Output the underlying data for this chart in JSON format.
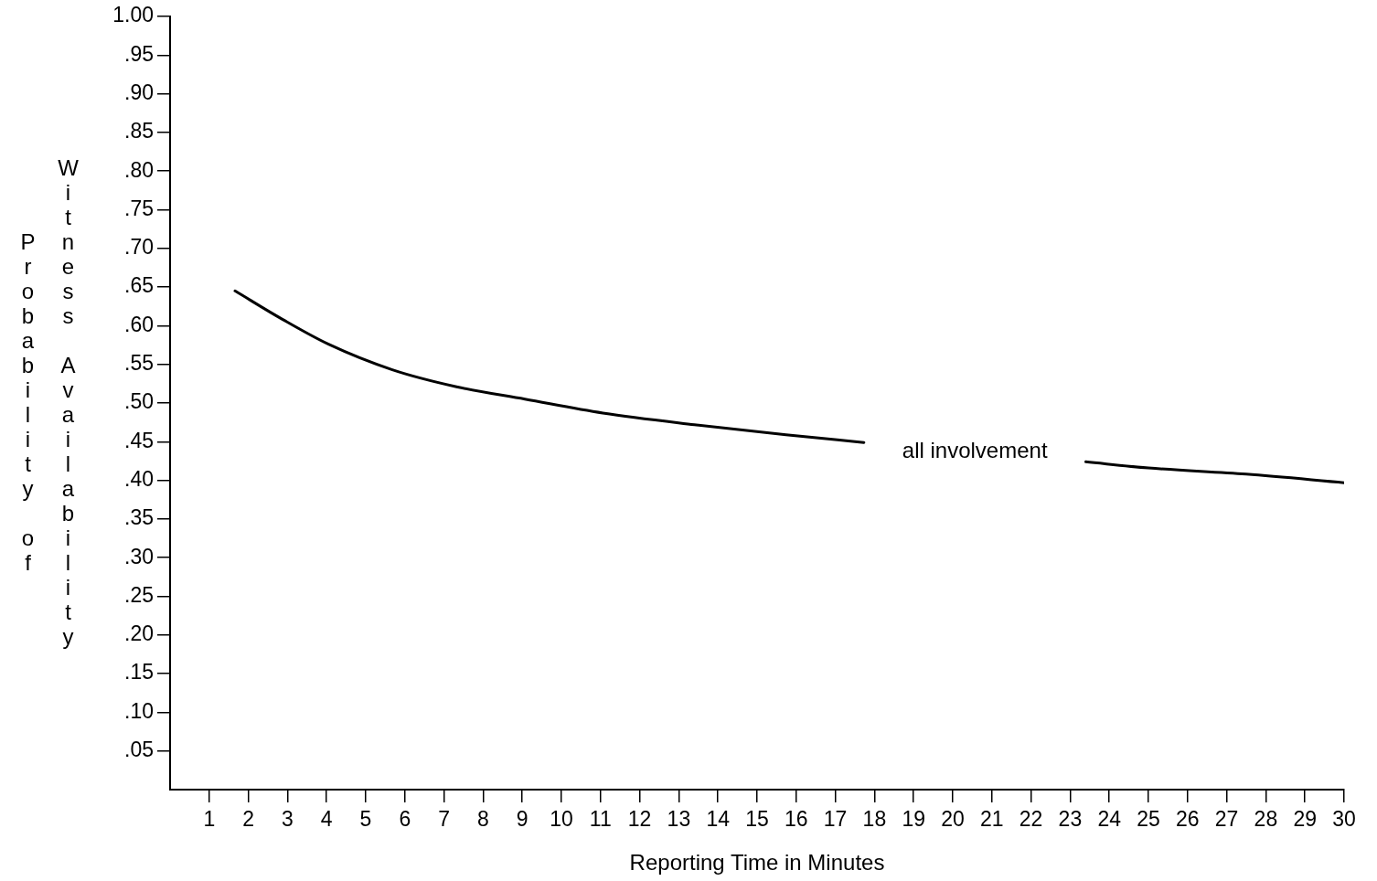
{
  "chart_data": {
    "type": "line",
    "xlabel": "Reporting Time in Minutes",
    "ylabel": "Probability of Witness Availability",
    "x": [
      1.66,
      2.88,
      4.05,
      5.68,
      7.32,
      9.07,
      11.06,
      13.4,
      15.74,
      17.73,
      20.6,
      23.4,
      25,
      27.5,
      30
    ],
    "series": [
      {
        "name": "all involvement",
        "color": "#000000",
        "values": [
          0.645,
          0.608,
          0.576,
          0.543,
          0.521,
          0.505,
          0.487,
          0.472,
          0.459,
          0.449,
          null,
          0.424,
          0.416,
          0.408,
          0.397
        ]
      }
    ],
    "xlim": [
      0,
      30
    ],
    "xticks": [
      1,
      2,
      3,
      4,
      5,
      6,
      7,
      8,
      9,
      10,
      11,
      12,
      13,
      14,
      15,
      16,
      17,
      18,
      19,
      20,
      21,
      22,
      23,
      24,
      25,
      26,
      27,
      28,
      29,
      30
    ],
    "ylim": [
      0,
      1
    ],
    "yticks": [
      {
        "value": 0.05,
        "label": ".05"
      },
      {
        "value": 0.1,
        "label": ".10"
      },
      {
        "value": 0.15,
        "label": ".15"
      },
      {
        "value": 0.2,
        "label": ".20"
      },
      {
        "value": 0.25,
        "label": ".25"
      },
      {
        "value": 0.3,
        "label": ".30"
      },
      {
        "value": 0.35,
        "label": ".35"
      },
      {
        "value": 0.4,
        "label": ".40"
      },
      {
        "value": 0.45,
        "label": ".45"
      },
      {
        "value": 0.5,
        "label": ".50"
      },
      {
        "value": 0.55,
        "label": ".55"
      },
      {
        "value": 0.6,
        "label": ".60"
      },
      {
        "value": 0.65,
        "label": ".65"
      },
      {
        "value": 0.7,
        "label": ".70"
      },
      {
        "value": 0.75,
        "label": ".75"
      },
      {
        "value": 0.8,
        "label": ".80"
      },
      {
        "value": 0.85,
        "label": ".85"
      },
      {
        "value": 0.9,
        "label": ".90"
      },
      {
        "value": 0.95,
        "label": ".95"
      },
      {
        "value": 1,
        "label": "1.00"
      }
    ],
    "grid": false,
    "legend": false,
    "marker": "none",
    "line_style": "solid"
  }
}
